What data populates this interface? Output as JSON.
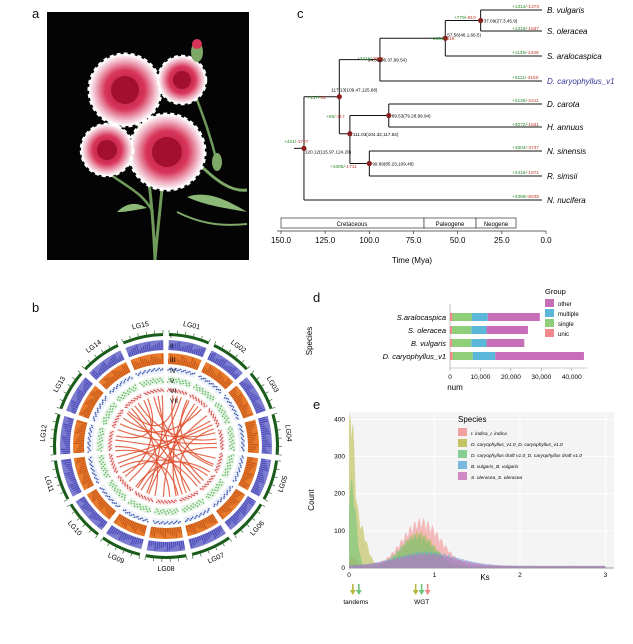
{
  "panels": {
    "a": "a",
    "b": "b",
    "c": "c",
    "d": "d",
    "e": "e"
  },
  "tree": {
    "taxa": [
      "B. vulgaris",
      "S. oleracea",
      "S. aralocaspica",
      "D. caryophyllus_v1",
      "D. carota",
      "H. annuus",
      "N. sinensis",
      "R. simsii",
      "N. nucifera"
    ],
    "highlight_taxon": "D. caryophyllus_v1",
    "highlight_color": "#3a3a9a",
    "node_labels": [
      "37.09(27.3,45.9)",
      "57.56(46.1,66.5)",
      "94.39(86.37,99.54)",
      "117.13(109.47,125.68)",
      "111.03(104.32,117.54)",
      "89.53(79.28,99.94)",
      "120.12(115.97,124.20)",
      "99.89(85.23,109.48)"
    ],
    "branch_labels": [
      "+1312/-1373",
      "+779/-810",
      "+1418/-1537",
      "+1654/-618",
      "+1135/-2436",
      "+3211/-3282",
      "+3111/-3150",
      "+3128/-2411",
      "+137/-62",
      "+65/-117",
      "+3072/-1631",
      "+421/-1727",
      "+3504/-3737",
      "+1006/-1711",
      "+2416/-1871",
      "+3389/-6635"
    ],
    "eras": [
      "Cretaceous",
      "Paleogene",
      "Neogene"
    ],
    "xticks": [
      "150.0",
      "125.0",
      "100.0",
      "75.0",
      "50.0",
      "25.0",
      "0.0"
    ],
    "xlabel": "Time (Mya)",
    "gain_color": "#2a8a2a",
    "loss_color": "#c0392b",
    "node_color": "#8a1f1f"
  },
  "circos": {
    "chromosomes": [
      "LG01",
      "LG02",
      "LG03",
      "LG04",
      "LG05",
      "LG06",
      "LG07",
      "LG08",
      "LG09",
      "LG10",
      "LG11",
      "LG12",
      "LG13",
      "LG14",
      "LG15"
    ],
    "track_labels": [
      "I",
      "II",
      "III",
      "IV",
      "V",
      "VI",
      "VII"
    ],
    "colors": {
      "ideogram": "#1a5c1a",
      "track2": "#7b7bd0",
      "track3": "#e87a2c",
      "track4": "#3a5ab0",
      "track5": "#5cb85c",
      "track6": "#d04040",
      "links": "#e05030"
    }
  },
  "chart_data": [
    {
      "type": "bar",
      "orientation": "horizontal",
      "stacked": true,
      "categories": [
        "S.aralocaspica",
        "S. oleracea",
        "B. vulgaris",
        "D. caryophyllus_v1"
      ],
      "series": [
        {
          "name": "unic",
          "color": "#f08a8a",
          "values": [
            800,
            700,
            700,
            900
          ]
        },
        {
          "name": "single",
          "color": "#8fcf7a",
          "values": [
            6400,
            6300,
            6300,
            6600
          ]
        },
        {
          "name": "multiple",
          "color": "#5bb7d9",
          "values": [
            5200,
            5000,
            5000,
            7400
          ]
        },
        {
          "name": "other",
          "color": "#c86eb8",
          "values": [
            17100,
            13600,
            12400,
            29100
          ]
        }
      ],
      "ylabel": "Species",
      "xlabel": "num",
      "xticks": [
        "0",
        "10,000",
        "20,000",
        "30,000",
        "40,000"
      ],
      "xlim": [
        0,
        45000
      ],
      "legend_title": "Group",
      "legend_order": [
        "other",
        "multiple",
        "single",
        "unic"
      ]
    },
    {
      "type": "area",
      "xlabel": "Ks",
      "ylabel": "Count",
      "xlim": [
        0,
        3.1
      ],
      "ylim": [
        0,
        420
      ],
      "xticks": [
        "0",
        "1",
        "2",
        "3"
      ],
      "yticks": [
        "0",
        "100",
        "200",
        "300",
        "400"
      ],
      "legend_title": "Species",
      "series": [
        {
          "name": "I. indica_I. indica",
          "color": "#f08a8a",
          "peak_ks": 0.85,
          "peak_count": 130
        },
        {
          "name": "D. caryophyllus_v1.0_D. caryophyllus_v1.0",
          "color": "#b8b840",
          "peak_ks": 0.02,
          "peak_count": 395
        },
        {
          "name": "D. caryophyllus draft v1.0_D. caryophyllus draft v1.0",
          "color": "#6ac47a",
          "peak_ks": 0.03,
          "peak_count": 240
        },
        {
          "name": "B. vulgaris_B. vulgaris",
          "color": "#5aa9d6",
          "peak_ks": 0.9,
          "peak_count": 40
        },
        {
          "name": "S. oleracea_S. oleracea",
          "color": "#c86eb8",
          "peak_ks": 0.9,
          "peak_count": 35
        }
      ],
      "annotations": [
        "tandems",
        "WGT"
      ]
    }
  ]
}
